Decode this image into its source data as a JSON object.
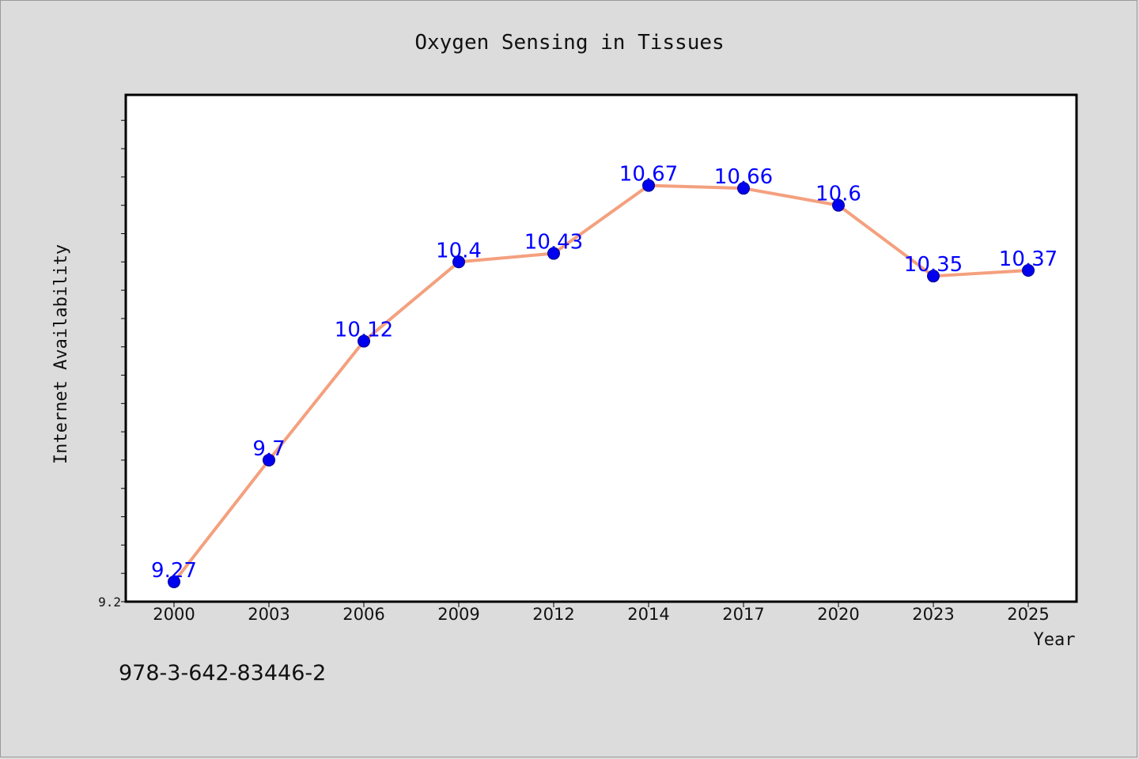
{
  "footer_code": "978-3-642-83446-2",
  "chart_data": {
    "type": "line",
    "title": "Oxygen Sensing in Tissues",
    "xlabel": "Year",
    "ylabel": "Internet Availability",
    "categories": [
      "2000",
      "2003",
      "2006",
      "2009",
      "2012",
      "2014",
      "2017",
      "2020",
      "2023",
      "2025"
    ],
    "series": [
      {
        "values": [
          9.27,
          9.7,
          10.12,
          10.4,
          10.43,
          10.67,
          10.66,
          10.6,
          10.35,
          10.37
        ],
        "data_labels": [
          "9.27",
          "9.7",
          "10.12",
          "10.4",
          "10.43",
          "10.67",
          "10.66",
          "10.6",
          "10.35",
          "10.37"
        ],
        "line_color": "#f4a07e",
        "marker_color": "#0000ee"
      }
    ],
    "ylim": [
      9.2,
      10.99
    ],
    "yticks_labeled": [
      "9.2"
    ],
    "grid": false,
    "legend": "none",
    "plot_background": "#ffffff",
    "figure_background": "#dcdcdc"
  }
}
